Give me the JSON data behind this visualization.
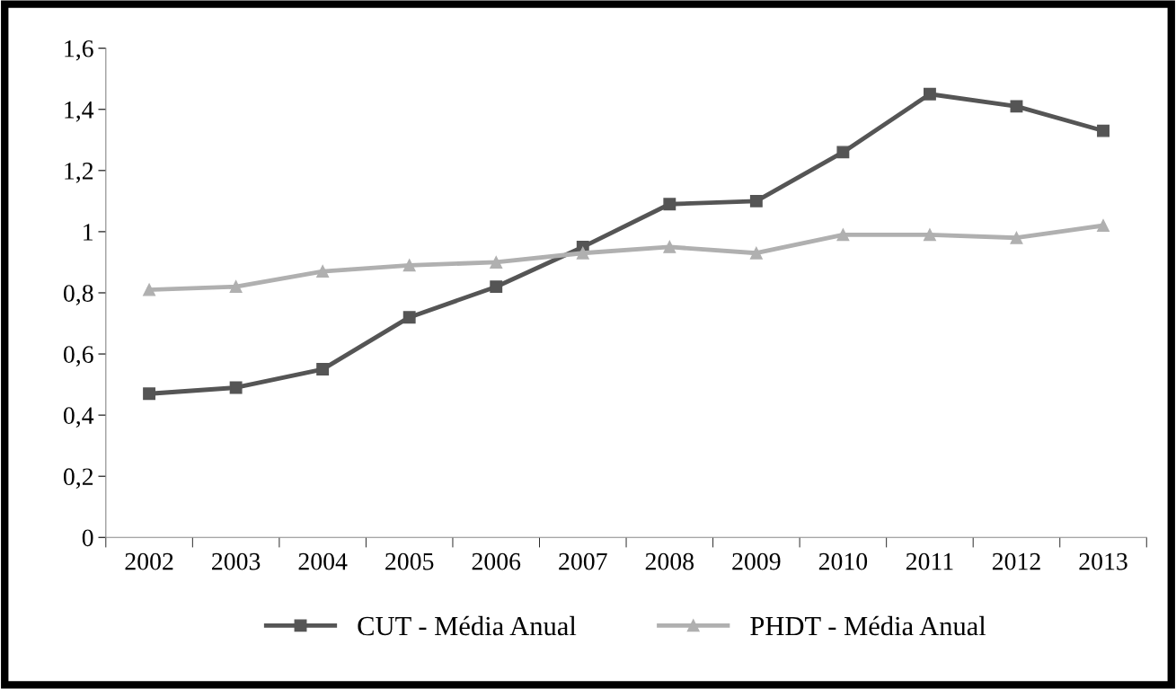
{
  "chart_data": {
    "type": "line",
    "categories": [
      "2002",
      "2003",
      "2004",
      "2005",
      "2006",
      "2007",
      "2008",
      "2009",
      "2010",
      "2011",
      "2012",
      "2013"
    ],
    "series": [
      {
        "name": "CUT - Média Anual",
        "color": "#555555",
        "marker": "square",
        "values": [
          0.47,
          0.49,
          0.55,
          0.72,
          0.82,
          0.95,
          1.09,
          1.1,
          1.26,
          1.45,
          1.41,
          1.33
        ]
      },
      {
        "name": "PHDT - Média Anual",
        "color": "#b0b0b0",
        "marker": "triangle",
        "values": [
          0.81,
          0.82,
          0.87,
          0.89,
          0.9,
          0.93,
          0.95,
          0.93,
          0.99,
          0.99,
          0.98,
          1.02
        ]
      }
    ],
    "ylim": [
      0,
      1.6
    ],
    "yticks": [
      0,
      {
        "value": 0.2,
        "label": "0,2"
      },
      {
        "value": 0.4,
        "label": "0,4"
      },
      {
        "value": 0.6,
        "label": "0,6"
      },
      {
        "value": 0.8,
        "label": "0,8"
      },
      1,
      {
        "value": 1.2,
        "label": "1,2"
      },
      {
        "value": 1.4,
        "label": "1,4"
      },
      {
        "value": 1.6,
        "label": "1,6"
      }
    ],
    "grid": false,
    "legend": "bottom",
    "line_style": "solid"
  }
}
